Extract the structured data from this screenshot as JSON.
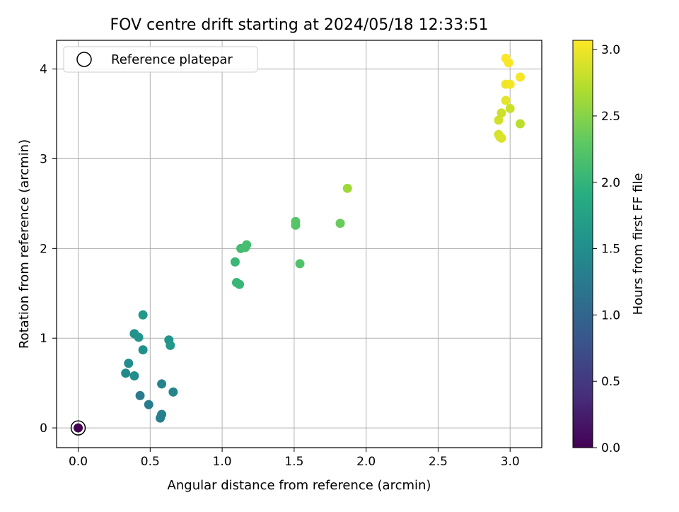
{
  "chart_data": {
    "type": "scatter",
    "title": "FOV centre drift starting at 2024/05/18 12:33:51",
    "xlabel": "Angular distance from reference (arcmin)",
    "ylabel": "Rotation from reference (arcmin)",
    "xlim": [
      -0.15,
      3.22
    ],
    "ylim": [
      -0.22,
      4.32
    ],
    "xticks": [
      0.0,
      0.5,
      1.0,
      1.5,
      2.0,
      2.5,
      3.0
    ],
    "xtick_labels": [
      "0.0",
      "0.5",
      "1.0",
      "1.5",
      "2.0",
      "2.5",
      "3.0"
    ],
    "yticks": [
      0,
      1,
      2,
      3,
      4
    ],
    "ytick_labels": [
      "0",
      "1",
      "2",
      "3",
      "4"
    ],
    "grid": true,
    "legend": {
      "position": "top-left",
      "label": "Reference platepar"
    },
    "colorbar": {
      "label": "Hours from first FF file",
      "range": [
        0.0,
        3.07
      ],
      "ticks": [
        0.0,
        0.5,
        1.0,
        1.5,
        2.0,
        2.5,
        3.0
      ],
      "tick_labels": [
        "0.0",
        "0.5",
        "1.0",
        "1.5",
        "2.0",
        "2.5",
        "3.0"
      ],
      "colormap": "viridis"
    },
    "reference_point": {
      "x": 0.0,
      "y": 0.0,
      "hours": 0.0
    },
    "points": [
      {
        "x": 0.0,
        "y": 0.0,
        "hours": 0.0
      },
      {
        "x": 0.57,
        "y": 0.11,
        "hours": 1.3
      },
      {
        "x": 0.58,
        "y": 0.15,
        "hours": 1.32
      },
      {
        "x": 0.49,
        "y": 0.26,
        "hours": 1.28
      },
      {
        "x": 0.43,
        "y": 0.36,
        "hours": 1.26
      },
      {
        "x": 0.66,
        "y": 0.4,
        "hours": 1.37
      },
      {
        "x": 0.58,
        "y": 0.49,
        "hours": 1.35
      },
      {
        "x": 0.33,
        "y": 0.61,
        "hours": 1.45
      },
      {
        "x": 0.39,
        "y": 0.58,
        "hours": 1.47
      },
      {
        "x": 0.35,
        "y": 0.72,
        "hours": 1.49
      },
      {
        "x": 0.45,
        "y": 0.87,
        "hours": 1.53
      },
      {
        "x": 0.39,
        "y": 1.05,
        "hours": 1.55
      },
      {
        "x": 0.42,
        "y": 1.01,
        "hours": 1.57
      },
      {
        "x": 0.63,
        "y": 0.98,
        "hours": 1.59
      },
      {
        "x": 0.64,
        "y": 0.92,
        "hours": 1.61
      },
      {
        "x": 0.45,
        "y": 1.26,
        "hours": 1.63
      },
      {
        "x": 1.09,
        "y": 1.85,
        "hours": 2.05
      },
      {
        "x": 1.1,
        "y": 1.62,
        "hours": 2.03
      },
      {
        "x": 1.12,
        "y": 1.6,
        "hours": 2.03
      },
      {
        "x": 1.13,
        "y": 2.0,
        "hours": 2.12
      },
      {
        "x": 1.16,
        "y": 2.01,
        "hours": 2.14
      },
      {
        "x": 1.17,
        "y": 2.04,
        "hours": 2.14
      },
      {
        "x": 1.51,
        "y": 2.26,
        "hours": 2.23
      },
      {
        "x": 1.51,
        "y": 2.3,
        "hours": 2.24
      },
      {
        "x": 1.54,
        "y": 1.83,
        "hours": 2.2
      },
      {
        "x": 1.82,
        "y": 2.28,
        "hours": 2.35
      },
      {
        "x": 1.87,
        "y": 2.67,
        "hours": 2.62
      },
      {
        "x": 2.92,
        "y": 3.27,
        "hours": 2.88
      },
      {
        "x": 2.93,
        "y": 3.24,
        "hours": 2.89
      },
      {
        "x": 2.94,
        "y": 3.23,
        "hours": 2.9
      },
      {
        "x": 2.92,
        "y": 3.43,
        "hours": 2.86
      },
      {
        "x": 2.94,
        "y": 3.51,
        "hours": 2.84
      },
      {
        "x": 3.0,
        "y": 3.56,
        "hours": 2.82
      },
      {
        "x": 3.07,
        "y": 3.39,
        "hours": 2.75
      },
      {
        "x": 2.97,
        "y": 3.65,
        "hours": 2.95
      },
      {
        "x": 2.97,
        "y": 3.83,
        "hours": 3.0
      },
      {
        "x": 3.0,
        "y": 3.83,
        "hours": 3.02
      },
      {
        "x": 3.07,
        "y": 3.91,
        "hours": 3.03
      },
      {
        "x": 2.97,
        "y": 4.12,
        "hours": 3.06
      },
      {
        "x": 2.99,
        "y": 4.07,
        "hours": 3.05
      }
    ]
  }
}
